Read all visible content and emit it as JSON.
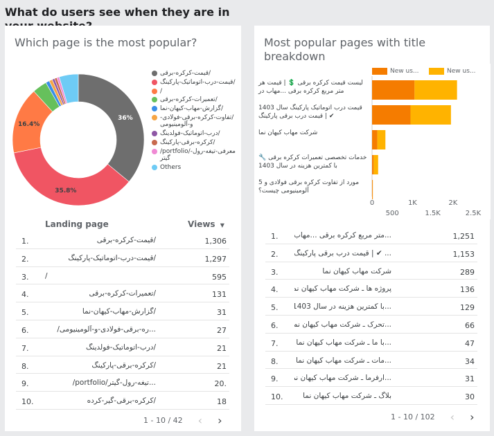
{
  "section_title": "What do users see when they are in your website?",
  "left_card": {
    "title": "Which page is the most popular?",
    "donut": {
      "slices": [
        {
          "label": "/قیمت-کرکره-برقی",
          "percent": 36,
          "color": "#6e6e6e",
          "display": "36%"
        },
        {
          "label": "/قیمت-درب-اتوماتیک-پارکینگ",
          "percent": 35.8,
          "color": "#f05563",
          "display": "35.8%"
        },
        {
          "label": "/",
          "percent": 16.4,
          "color": "#ff7a45",
          "display": "16.4%"
        },
        {
          "label": "/تعمیرات-کرکره-برقی",
          "percent": 3.6,
          "color": "#66c05c",
          "display": ""
        },
        {
          "label": "/گزارش-مهاب-کیهان-نما",
          "percent": 0.9,
          "color": "#3a8ee8",
          "display": ""
        },
        {
          "label": "/تفاوت-کرکره-برقی-فولادی-و-آلومینیومی",
          "percent": 0.8,
          "color": "#f6a545",
          "display": ""
        },
        {
          "label": "/درب-اتوماتیک-فولدینگ",
          "percent": 0.6,
          "color": "#8e57a5",
          "display": ""
        },
        {
          "label": "/کرکره-برقی-پارکینگ",
          "percent": 0.6,
          "color": "#c86a4e",
          "display": ""
        },
        {
          "label": "/portfolio/معرفی-تیغه-رول-گیتر",
          "percent": 0.6,
          "color": "#f08ad4",
          "display": ""
        },
        {
          "label": "Others",
          "percent": 4.7,
          "color": "#6ecbf5",
          "display": ""
        }
      ]
    },
    "table": {
      "col_page": "Landing page",
      "col_views": "Views",
      "sort_icon": "caret-down",
      "rows": [
        {
          "n": "1.",
          "page": "/قیمت-کرکره-برقی",
          "views": "1,306"
        },
        {
          "n": "2.",
          "page": "/قیمت-درب-اتوماتیک-پارکینگ",
          "views": "1,297"
        },
        {
          "n": "3.",
          "page": "/",
          "views": "595"
        },
        {
          "n": "4.",
          "page": "/تعمیرات-کرکره-برقی",
          "views": "131"
        },
        {
          "n": "5.",
          "page": "/گزارش-مهاب-کیهان-نما",
          "views": "31"
        },
        {
          "n": "6.",
          "page": "...ره-برقی-فولادی-و-آلومینیومی/",
          "views": "27"
        },
        {
          "n": "7.",
          "page": "/درب-اتوماتیک-فولدینگ",
          "views": "21"
        },
        {
          "n": "8.",
          "page": "/کرکره-برقی-پارکینگ",
          "views": "21"
        },
        {
          "n": "9.",
          "page": "...تیغه-رول-گیتر/portfolio/",
          "views": "20."
        },
        {
          "n": "10.",
          "page": "/کرکره-برقی-گیر-کرده",
          "views": "18"
        }
      ],
      "pager": "1 - 10 / 42"
    }
  },
  "right_card": {
    "title": "Most popular pages with title breakdown",
    "legend": [
      "New us...",
      "New us..."
    ],
    "colors": {
      "series1": "#f57c00",
      "series2": "#ffb300"
    },
    "chart_data": {
      "type": "bar",
      "orientation": "horizontal",
      "categories": [
        "لیست قیمت کرکره برقی 💲 | قیمت هر متر مربع کرکره برقی ...مهاب در",
        "قیمت درب اتوماتیک پارکینگ سال 1403 ✔ | قیمت درب برقی پارکینگ",
        "شرکت مهاب کیهان نما",
        "خدمات تخصصی تعمیرات کرکره برقی 🔧 با کمترین هزینه در سال 1403",
        "مورد از تفاوت کرکره برقی فولادی و 5 آلومینیومی چیست؟"
      ],
      "series": [
        {
          "name": "New us...",
          "values": [
            1050,
            950,
            130,
            40,
            15
          ]
        },
        {
          "name": "New us...",
          "values": [
            1050,
            1000,
            200,
            110,
            5
          ]
        }
      ],
      "xticks_top": [
        "0",
        "1K",
        "2K"
      ],
      "xticks_bottom": [
        "500",
        "1.5K",
        "2.5K"
      ],
      "xlim": [
        0,
        2500
      ]
    },
    "table": {
      "rows": [
        {
          "n": "1.",
          "page": "...متر مربع کرکره برقی ...مهاب در",
          "views": "1,251"
        },
        {
          "n": "2.",
          "page": "... ✔ | قیمت درب برقی پارکینگ",
          "views": "1,153"
        },
        {
          "n": "3.",
          "page": "شرکت مهاب کیهان نما",
          "views": "289"
        },
        {
          "n": "4.",
          "page": "پروژه ها ـ شرکت مهاب کیهان نما",
          "views": "136"
        },
        {
          "n": "5.",
          "page": "...با کمترین هزینه در سال 1403",
          "views": "129"
        },
        {
          "n": "6.",
          "page": "...تحرک ـ شرکت مهاب کیهان نما",
          "views": "66"
        },
        {
          "n": "7.",
          "page": "...با ما ـ شرکت مهاب کیهان نما",
          "views": "47"
        },
        {
          "n": "8.",
          "page": "...مات ـ شرکت مهاب کیهان نما",
          "views": "34"
        },
        {
          "n": "9.",
          "page": "...ارفرما ـ شرکت مهاب کیهان نما",
          "views": "31"
        },
        {
          "n": "10.",
          "page": "بلاگ ـ شرکت مهاب کیهان نما",
          "views": "30"
        }
      ],
      "pager": "1 - 10 / 102"
    }
  }
}
